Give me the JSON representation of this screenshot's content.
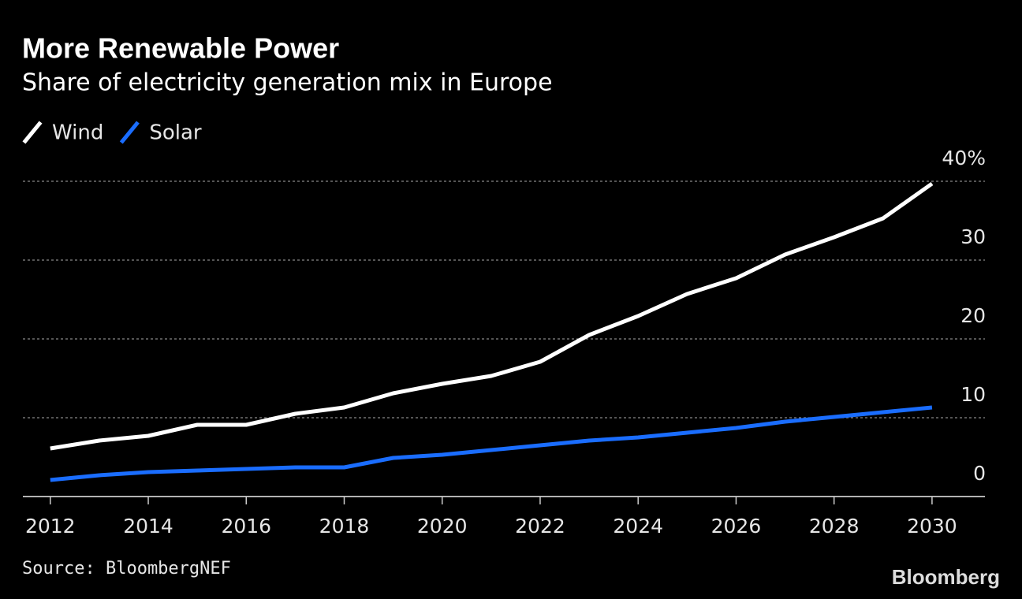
{
  "chart_data": {
    "type": "line",
    "title": "More Renewable Power",
    "subtitle": "Share of electricity generation mix in Europe",
    "source": "Source: BloombergNEF",
    "brand": "Bloomberg",
    "x": [
      2012,
      2013,
      2014,
      2015,
      2016,
      2017,
      2018,
      2019,
      2020,
      2021,
      2022,
      2023,
      2024,
      2025,
      2026,
      2027,
      2028,
      2029,
      2030
    ],
    "series": [
      {
        "name": "Wind",
        "color": "#ffffff",
        "values": [
          6.1,
          7.1,
          7.7,
          9.1,
          9.1,
          10.5,
          11.3,
          13.1,
          14.3,
          15.3,
          17.1,
          20.5,
          22.9,
          25.7,
          27.7,
          30.7,
          32.9,
          35.3,
          39.7
        ]
      },
      {
        "name": "Solar",
        "color": "#1a6dff",
        "values": [
          2.1,
          2.7,
          3.1,
          3.3,
          3.5,
          3.7,
          3.7,
          4.9,
          5.3,
          5.9,
          6.5,
          7.1,
          7.5,
          8.1,
          8.7,
          9.5,
          10.1,
          10.7,
          11.3
        ]
      }
    ],
    "xlim": [
      2011.44,
      2031.08
    ],
    "xticks": [
      2012,
      2014,
      2016,
      2018,
      2020,
      2022,
      2024,
      2026,
      2028,
      2030
    ],
    "ylim": [
      0,
      40
    ],
    "yticks": [
      0,
      10,
      20,
      30,
      {
        "value": 40,
        "label": "40%"
      }
    ],
    "grid": true
  }
}
